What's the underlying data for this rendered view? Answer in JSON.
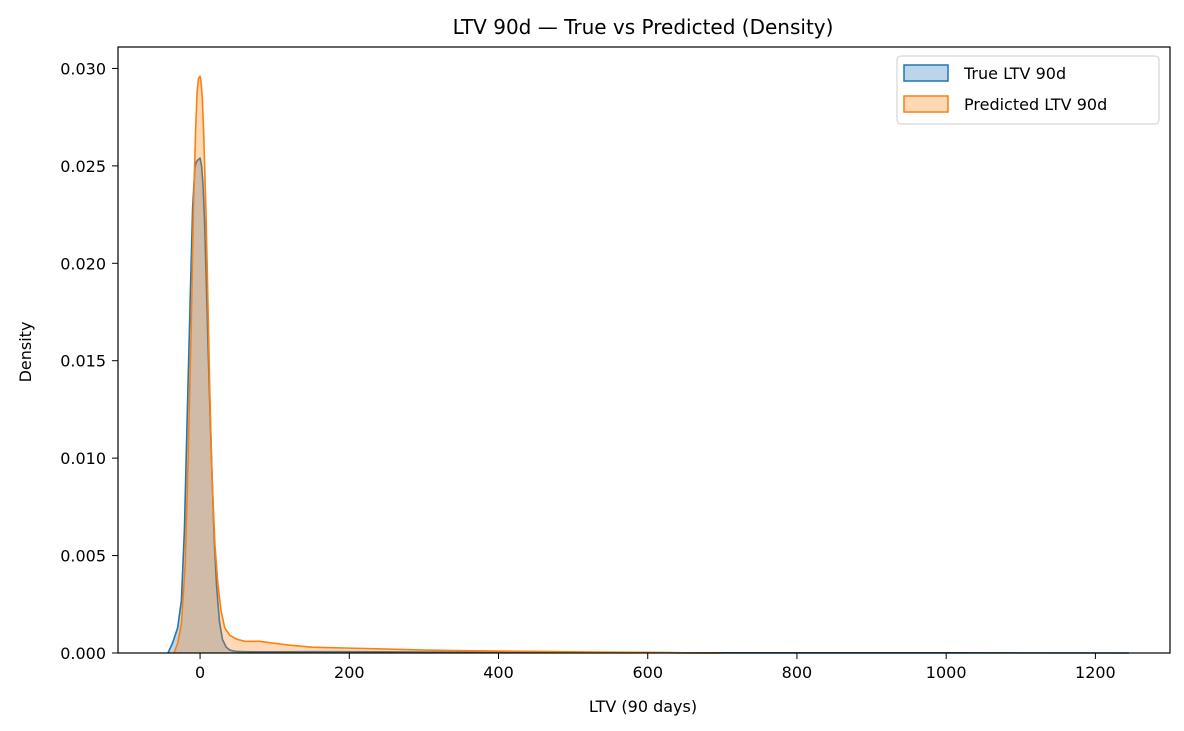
{
  "chart_data": {
    "type": "area",
    "title": "LTV 90d — True vs Predicted (Density)",
    "xlabel": "LTV (90 days)",
    "ylabel": "Density",
    "xlim": [
      -110,
      1300
    ],
    "ylim": [
      0,
      0.0311
    ],
    "x_ticks": [
      0,
      200,
      400,
      600,
      800,
      1000,
      1200
    ],
    "x_tick_labels": [
      "0",
      "200",
      "400",
      "600",
      "800",
      "1000",
      "1200"
    ],
    "y_ticks": [
      0,
      0.005,
      0.01,
      0.015,
      0.02,
      0.025,
      0.03
    ],
    "y_tick_labels": [
      "0.000",
      "0.005",
      "0.010",
      "0.015",
      "0.020",
      "0.025",
      "0.030"
    ],
    "grid": false,
    "legend_position": "top-right",
    "series": [
      {
        "name": "True LTV 90d",
        "line_color": "#1f77b4",
        "fill_color": "#1f77b4",
        "fill_opacity": 0.3,
        "x": [
          -43,
          -37,
          -30,
          -25,
          -21,
          -17,
          -13,
          -10,
          -7,
          -5,
          -3,
          0,
          2,
          4,
          6,
          8,
          11,
          15,
          19,
          22,
          26,
          30,
          35,
          40,
          45,
          50,
          60,
          80,
          100,
          150,
          200,
          250,
          300,
          400,
          500,
          550,
          600,
          650,
          700,
          800,
          1000,
          1245
        ],
        "y": [
          0.0,
          0.0005,
          0.0013,
          0.0027,
          0.0063,
          0.0125,
          0.0185,
          0.0228,
          0.0249,
          0.0252,
          0.0253,
          0.0254,
          0.025,
          0.024,
          0.0222,
          0.0195,
          0.0153,
          0.0103,
          0.0058,
          0.0035,
          0.0016,
          0.0007,
          0.0003,
          0.00015,
          0.0001,
          8e-05,
          7e-05,
          6e-05,
          6e-05,
          7e-05,
          7e-05,
          6e-05,
          5e-05,
          4e-05,
          3e-05,
          3e-05,
          2e-05,
          1e-05,
          1e-05,
          1e-05,
          1e-05,
          0.0
        ]
      },
      {
        "name": "Predicted LTV 90d",
        "line_color": "#ff7f0e",
        "fill_color": "#ff7f0e",
        "fill_opacity": 0.3,
        "x": [
          -35,
          -30,
          -25,
          -20,
          -16,
          -12,
          -9,
          -6,
          -4,
          -2,
          0,
          1,
          3,
          5,
          8,
          10,
          13,
          16,
          20,
          24,
          28,
          33,
          40,
          50,
          60,
          80,
          100,
          120,
          150,
          200,
          250,
          300,
          350,
          400,
          450,
          500,
          550,
          600,
          650,
          700
        ],
        "y": [
          0.0,
          0.0005,
          0.0015,
          0.0045,
          0.01,
          0.0165,
          0.0225,
          0.0268,
          0.0288,
          0.0295,
          0.0296,
          0.0294,
          0.0285,
          0.0265,
          0.0225,
          0.019,
          0.0135,
          0.009,
          0.0055,
          0.0035,
          0.0022,
          0.0013,
          0.0009,
          0.0007,
          0.0006,
          0.0006,
          0.0005,
          0.0004,
          0.0003,
          0.00025,
          0.0002,
          0.00015,
          0.00012,
          0.0001,
          8e-05,
          6e-05,
          4e-05,
          3e-05,
          1e-05,
          0.0
        ]
      }
    ]
  }
}
